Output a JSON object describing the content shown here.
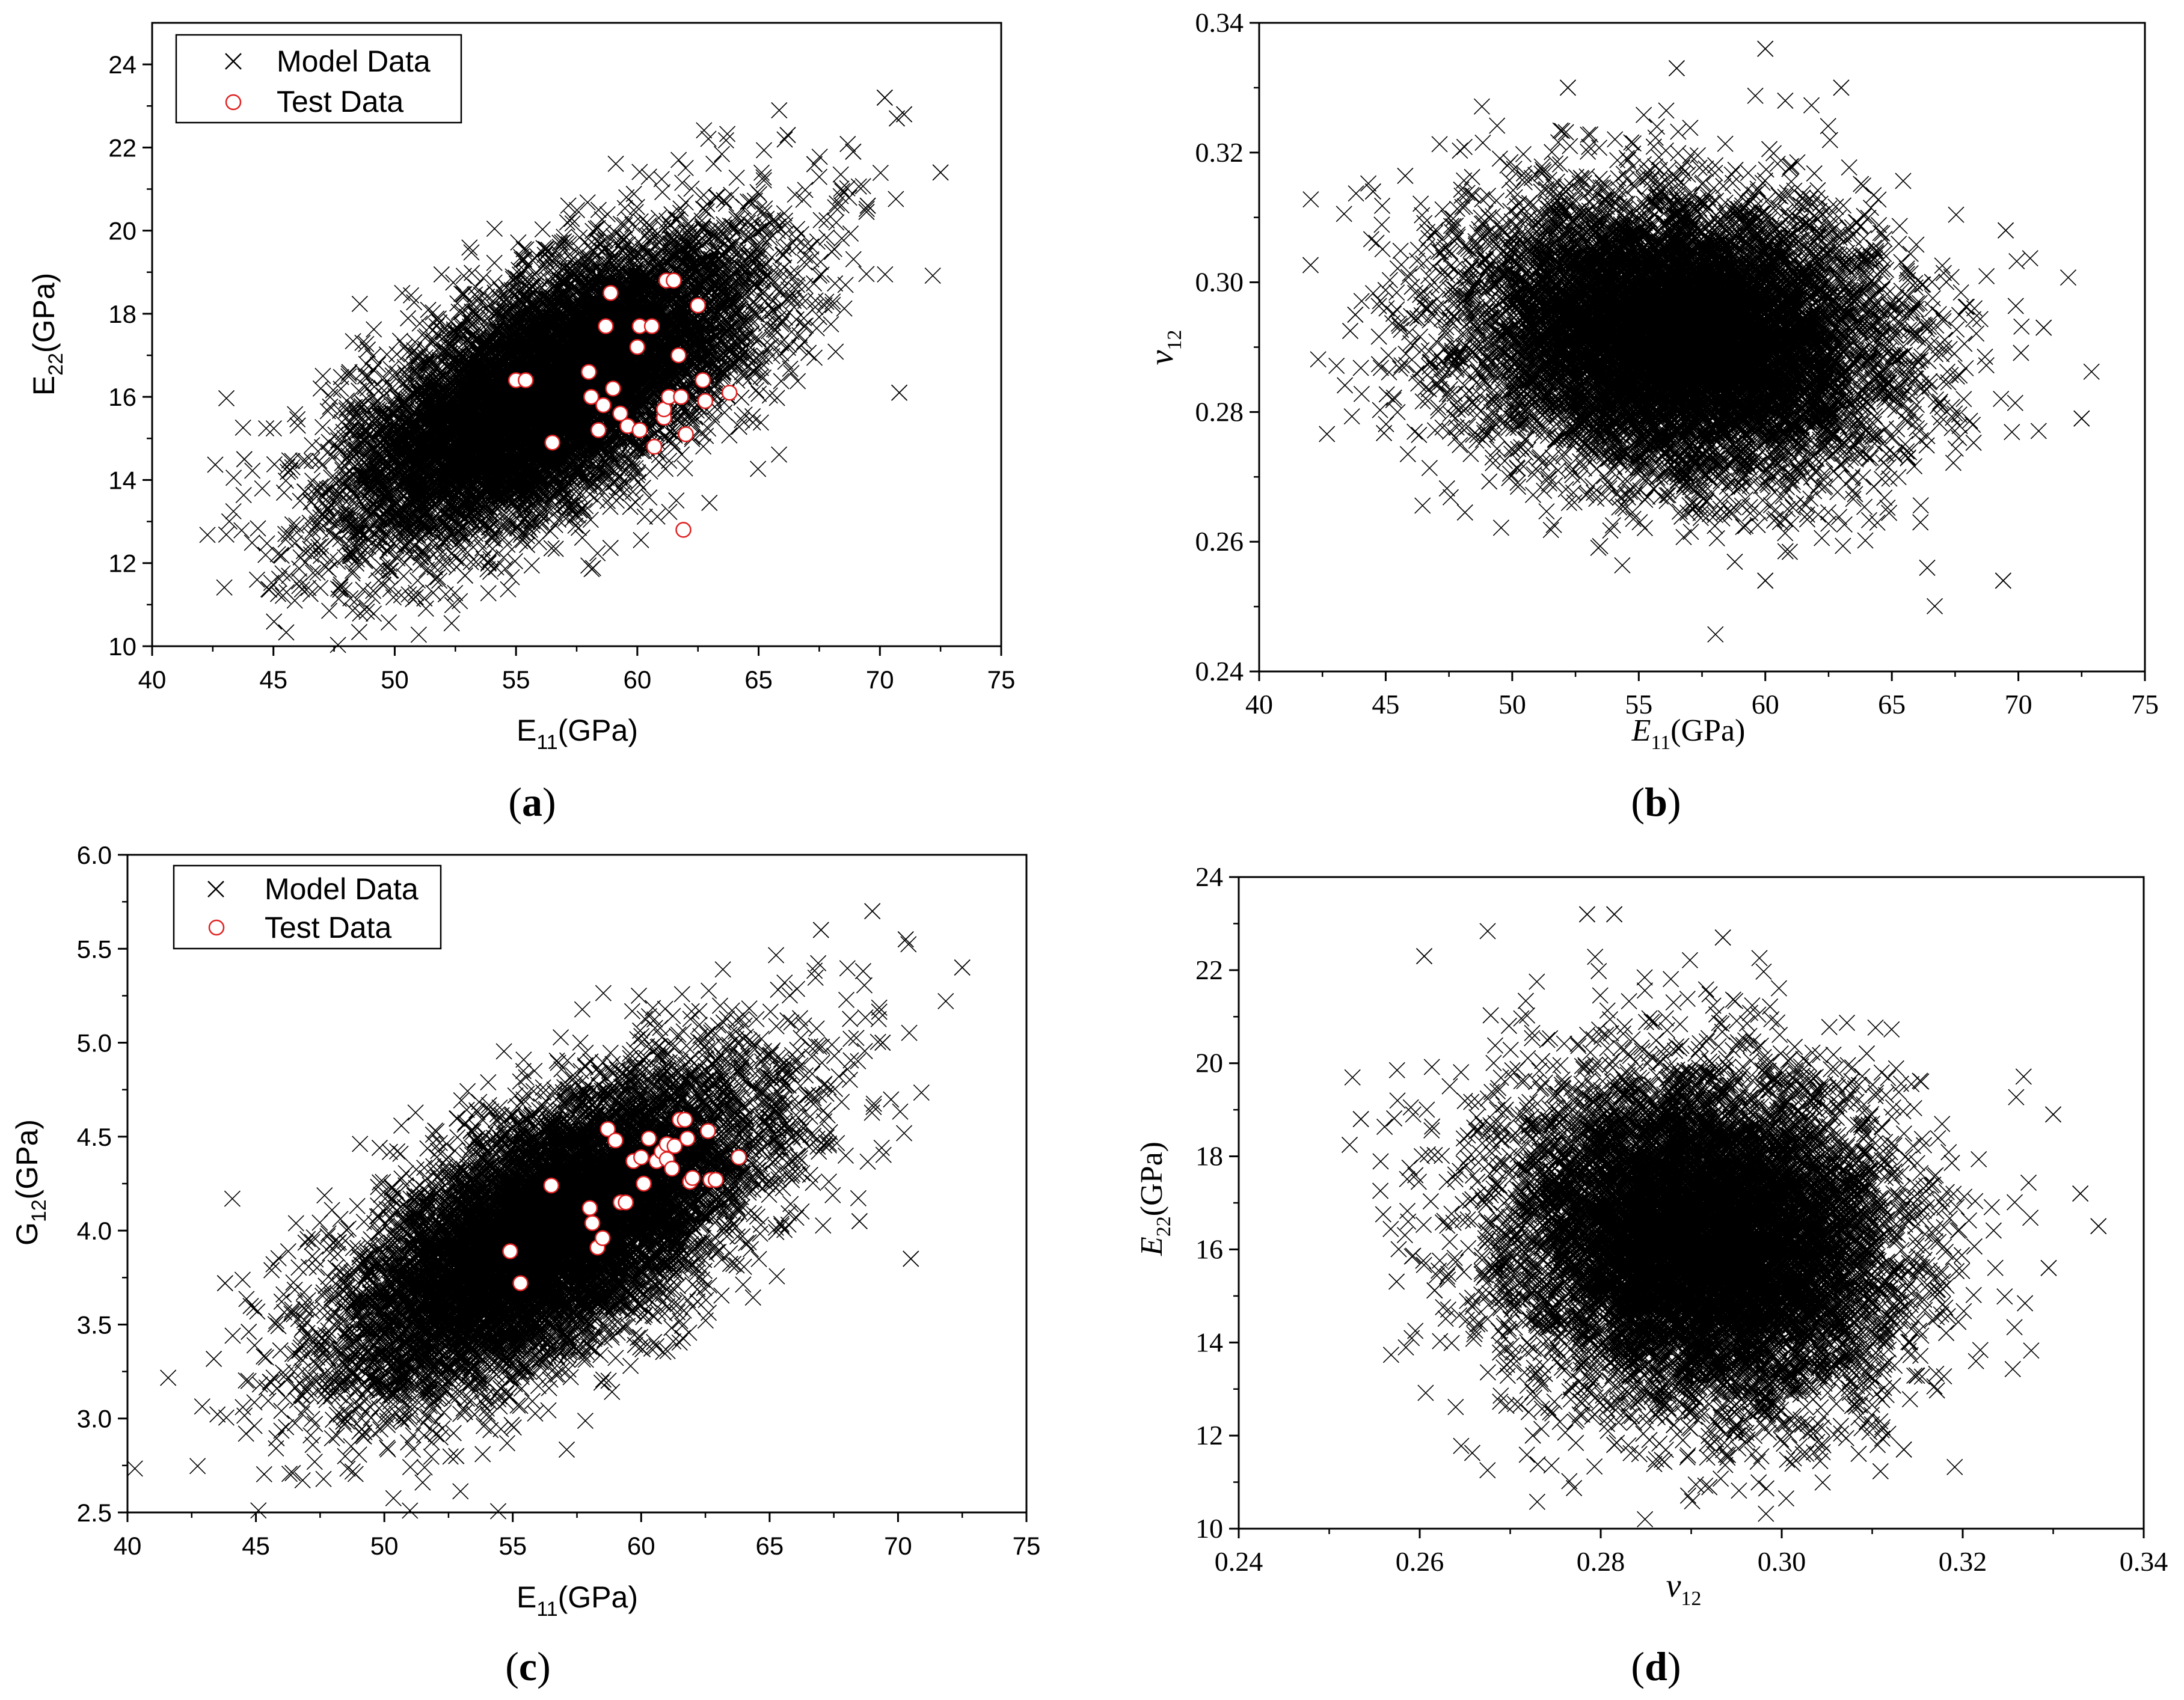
{
  "colors": {
    "model": "#000000",
    "test": "#e02020",
    "axis": "#000000",
    "background": "#ffffff"
  },
  "panels": [
    {
      "id": "a",
      "caption": "(a)",
      "caption_letter": "a",
      "font": "sans",
      "legend": {
        "placement": "top-left",
        "entries": [
          {
            "label": "Model Data",
            "marker": "x-mark"
          },
          {
            "label": "Test Data",
            "marker": "circle"
          }
        ]
      },
      "chart_data": {
        "type": "scatter",
        "xlabel": "E11(GPa)",
        "xlabel_base": "E",
        "xlabel_sub": "11",
        "xlabel_tail": "(GPa)",
        "ylabel": "E22(GPa)",
        "ylabel_base": "E",
        "ylabel_sub": "22",
        "ylabel_tail": "(GPa)",
        "xlim": [
          40,
          75
        ],
        "ylim": [
          10,
          25
        ],
        "xticks": [
          40,
          45,
          50,
          55,
          60,
          65,
          70,
          75
        ],
        "yticks": [
          10,
          12,
          14,
          16,
          18,
          20,
          22,
          24
        ],
        "xtick_labels": [
          "40",
          "45",
          "50",
          "55",
          "60",
          "65",
          "70",
          "75"
        ],
        "ytick_labels": [
          "10",
          "12",
          "14",
          "16",
          "18",
          "20",
          "22",
          "24"
        ],
        "model_cloud": {
          "n": 10000,
          "mean_x": 56.5,
          "sd_x": 4.1,
          "mean_y": 16.2,
          "sd_y": 1.75,
          "corr": 0.65,
          "seed": 11
        },
        "outliers": [
          [
            43.8,
            14.5
          ],
          [
            70.2,
            23.2
          ],
          [
            70.7,
            22.7
          ],
          [
            72.5,
            21.4
          ],
          [
            70.8,
            16.1
          ],
          [
            68.9,
            21.9
          ],
          [
            66.2,
            22.3
          ],
          [
            52.9,
            11.7
          ],
          [
            49.5,
            11.9
          ],
          [
            67.3,
            21.6
          ],
          [
            69.5,
            20.6
          ],
          [
            71.0,
            22.8
          ]
        ],
        "test_data": [
          [
            55.0,
            16.4
          ],
          [
            55.4,
            16.4
          ],
          [
            56.5,
            14.9
          ],
          [
            58.0,
            16.6
          ],
          [
            58.7,
            17.7
          ],
          [
            58.9,
            18.5
          ],
          [
            59.0,
            16.2
          ],
          [
            58.1,
            16.0
          ],
          [
            58.4,
            15.2
          ],
          [
            58.6,
            15.8
          ],
          [
            59.3,
            15.6
          ],
          [
            59.6,
            15.3
          ],
          [
            60.0,
            17.2
          ],
          [
            60.1,
            17.7
          ],
          [
            60.6,
            17.7
          ],
          [
            60.1,
            15.2
          ],
          [
            60.7,
            14.8
          ],
          [
            61.1,
            15.5
          ],
          [
            61.1,
            15.7
          ],
          [
            61.3,
            16.0
          ],
          [
            61.2,
            18.8
          ],
          [
            61.5,
            18.8
          ],
          [
            61.7,
            17.0
          ],
          [
            61.8,
            16.0
          ],
          [
            62.0,
            15.1
          ],
          [
            62.5,
            18.2
          ],
          [
            62.7,
            16.4
          ],
          [
            62.8,
            15.9
          ],
          [
            63.8,
            16.1
          ],
          [
            61.9,
            12.8
          ]
        ]
      }
    },
    {
      "id": "b",
      "caption": "(b)",
      "caption_letter": "b",
      "font": "serif",
      "legend": null,
      "chart_data": {
        "type": "scatter",
        "xlabel": "E11(GPa)",
        "xlabel_base": "E",
        "xlabel_sub": "11",
        "xlabel_tail": "(GPa)",
        "ylabel": "ν12",
        "ylabel_base": "ν",
        "ylabel_sub": "12",
        "ylabel_tail": "",
        "xlim": [
          40,
          75
        ],
        "ylim": [
          0.24,
          0.34
        ],
        "xticks": [
          40,
          45,
          50,
          55,
          60,
          65,
          70,
          75
        ],
        "yticks": [
          0.24,
          0.26,
          0.28,
          0.3,
          0.32,
          0.34
        ],
        "xtick_labels": [
          "40",
          "45",
          "50",
          "55",
          "60",
          "65",
          "70",
          "75"
        ],
        "ytick_labels": [
          "0.24",
          "0.26",
          "0.28",
          "0.30",
          "0.32",
          "0.34"
        ],
        "model_cloud": {
          "n": 10000,
          "mean_x": 56.5,
          "sd_x": 4.1,
          "mean_y": 0.2915,
          "sd_y": 0.0105,
          "corr": -0.1,
          "seed": 23
        },
        "outliers": [
          [
            60.0,
            0.336
          ],
          [
            56.5,
            0.333
          ],
          [
            63.0,
            0.33
          ],
          [
            52.2,
            0.33
          ],
          [
            72.5,
            0.279
          ],
          [
            69.4,
            0.254
          ],
          [
            60.0,
            0.254
          ],
          [
            44.5,
            0.314
          ],
          [
            43.8,
            0.295
          ],
          [
            71.0,
            0.293
          ],
          [
            69.5,
            0.308
          ]
        ],
        "test_data": []
      }
    },
    {
      "id": "c",
      "caption": "(c)",
      "caption_letter": "c",
      "font": "sans",
      "legend": {
        "placement": "top-left",
        "entries": [
          {
            "label": "Model Data",
            "marker": "x-mark"
          },
          {
            "label": "Test Data",
            "marker": "circle"
          }
        ]
      },
      "chart_data": {
        "type": "scatter",
        "xlabel": "E11(GPa)",
        "xlabel_base": "E",
        "xlabel_sub": "11",
        "xlabel_tail": "(GPa)",
        "ylabel": "G12(GPa)",
        "ylabel_base": "G",
        "ylabel_sub": "12",
        "ylabel_tail": "(GPa)",
        "xlim": [
          40,
          75
        ],
        "ylim": [
          2.5,
          6.0
        ],
        "xticks": [
          40,
          45,
          50,
          55,
          60,
          65,
          70,
          75
        ],
        "yticks": [
          2.5,
          3.0,
          3.5,
          4.0,
          4.5,
          5.0,
          5.5,
          6.0
        ],
        "xtick_labels": [
          "40",
          "45",
          "50",
          "55",
          "60",
          "65",
          "70",
          "75"
        ],
        "ytick_labels": [
          "2.5",
          "3.0",
          "3.5",
          "4.0",
          "4.5",
          "5.0",
          "5.5",
          "6.0"
        ],
        "model_cloud": {
          "n": 10000,
          "mean_x": 56.5,
          "sd_x": 4.1,
          "mean_y": 4.0,
          "sd_y": 0.42,
          "corr": 0.65,
          "seed": 37
        },
        "outliers": [
          [
            43.8,
            3.72
          ],
          [
            52.8,
            2.8
          ],
          [
            72.5,
            5.4
          ],
          [
            70.5,
            3.85
          ],
          [
            69.0,
            5.7
          ],
          [
            70.3,
            5.55
          ],
          [
            67.0,
            5.6
          ],
          [
            69.4,
            5.0
          ],
          [
            68.5,
            4.05
          ]
        ],
        "test_data": [
          [
            54.9,
            3.89
          ],
          [
            55.3,
            3.72
          ],
          [
            56.5,
            4.24
          ],
          [
            58.0,
            4.12
          ],
          [
            58.1,
            4.04
          ],
          [
            58.3,
            3.91
          ],
          [
            58.5,
            3.96
          ],
          [
            58.7,
            4.54
          ],
          [
            59.0,
            4.48
          ],
          [
            59.2,
            4.15
          ],
          [
            59.4,
            4.15
          ],
          [
            59.7,
            4.37
          ],
          [
            60.0,
            4.39
          ],
          [
            60.1,
            4.25
          ],
          [
            60.3,
            4.49
          ],
          [
            60.6,
            4.37
          ],
          [
            60.8,
            4.42
          ],
          [
            61.0,
            4.38
          ],
          [
            61.0,
            4.46
          ],
          [
            61.2,
            4.33
          ],
          [
            61.3,
            4.45
          ],
          [
            61.5,
            4.59
          ],
          [
            61.7,
            4.59
          ],
          [
            61.8,
            4.49
          ],
          [
            61.9,
            4.26
          ],
          [
            62.0,
            4.28
          ],
          [
            62.6,
            4.53
          ],
          [
            62.7,
            4.27
          ],
          [
            62.9,
            4.27
          ],
          [
            63.8,
            4.39
          ]
        ]
      }
    },
    {
      "id": "d",
      "caption": "(d)",
      "caption_letter": "d",
      "font": "serif",
      "legend": null,
      "chart_data": {
        "type": "scatter",
        "xlabel": "ν12",
        "xlabel_base": "ν",
        "xlabel_sub": "12",
        "xlabel_tail": "",
        "ylabel": "E22(GPa)",
        "ylabel_base": "E",
        "ylabel_sub": "22",
        "ylabel_tail": "(GPa)",
        "xlim": [
          0.24,
          0.34
        ],
        "ylim": [
          10,
          24
        ],
        "xticks": [
          0.24,
          0.26,
          0.28,
          0.3,
          0.32,
          0.34
        ],
        "yticks": [
          10,
          12,
          14,
          16,
          18,
          20,
          22,
          24
        ],
        "xtick_labels": [
          "0.24",
          "0.26",
          "0.28",
          "0.30",
          "0.32",
          "0.34"
        ],
        "ytick_labels": [
          "10",
          "12",
          "14",
          "16",
          "18",
          "20",
          "22",
          "24"
        ],
        "model_cloud": {
          "n": 10000,
          "mean_x": 0.2915,
          "sd_x": 0.0105,
          "mean_y": 16.2,
          "sd_y": 1.75,
          "corr": -0.1,
          "seed": 53
        },
        "outliers": [
          [
            0.2785,
            23.2
          ],
          [
            0.2815,
            23.2
          ],
          [
            0.2935,
            22.7
          ],
          [
            0.2605,
            22.3
          ],
          [
            0.335,
            16.5
          ],
          [
            0.333,
            17.2
          ],
          [
            0.33,
            18.9
          ],
          [
            0.3295,
            15.6
          ],
          [
            0.3135,
            11.7
          ],
          [
            0.2815,
            11.8
          ],
          [
            0.2725,
            12.0
          ],
          [
            0.2535,
            18.8
          ]
        ],
        "test_data": []
      }
    }
  ]
}
